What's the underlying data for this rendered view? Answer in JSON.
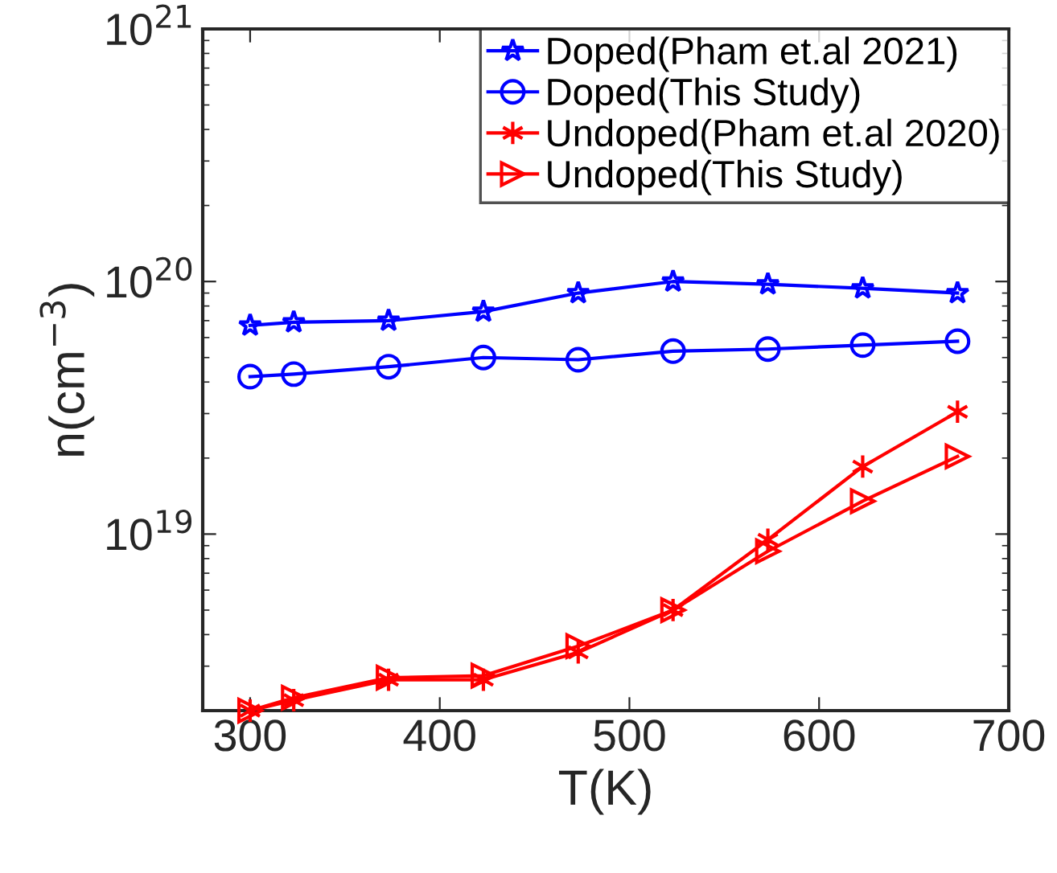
{
  "chart_data": {
    "type": "line",
    "xlabel": "T(K)",
    "ylabel": "n(cm$^{−3}$)",
    "x": [
      300,
      323,
      373,
      423,
      473,
      523,
      573,
      623,
      673
    ],
    "series": [
      {
        "name": "Doped(Pham et.al 2021)",
        "color": "#0000ff",
        "marker": "star",
        "values": [
          6.7e+19,
          6.9e+19,
          7e+19,
          7.6e+19,
          9e+19,
          1e+20,
          9.75e+19,
          9.4e+19,
          9e+19
        ]
      },
      {
        "name": "Doped(This Study)",
        "color": "#0000ff",
        "marker": "circle",
        "values": [
          4.2e+19,
          4.3e+19,
          4.6e+19,
          5e+19,
          4.9e+19,
          5.3e+19,
          5.4e+19,
          5.6e+19,
          5.8e+19
        ]
      },
      {
        "name": "Undoped(Pham et.al 2020)",
        "color": "#ff0000",
        "marker": "cross",
        "values": [
          2e+18,
          2.2e+18,
          2.65e+18,
          2.65e+18,
          3.4e+18,
          5e+18,
          9.5e+18,
          1.85e+19,
          3.05e+19
        ]
      },
      {
        "name": "Undoped(This Study)",
        "color": "#ff0000",
        "marker": "triangle",
        "values": [
          2e+18,
          2.25e+18,
          2.7e+18,
          2.75e+18,
          3.6e+18,
          5e+18,
          8.55e+18,
          1.35e+19,
          2.03e+19
        ]
      }
    ],
    "log": "y",
    "xlim": [
      275,
      700
    ],
    "xticks": [
      300,
      400,
      500,
      600,
      700
    ],
    "ylim": [
      2e+18,
      1e+21
    ],
    "yticks": [
      {
        "value": 1e+19,
        "label": "10$^{19}$"
      },
      {
        "value": 1e+20,
        "label": "10$^{20}$"
      },
      {
        "value": 1e+21,
        "label": "10$^{21}$"
      }
    ],
    "line_style": "solid",
    "grid": false,
    "legend": "top right"
  }
}
